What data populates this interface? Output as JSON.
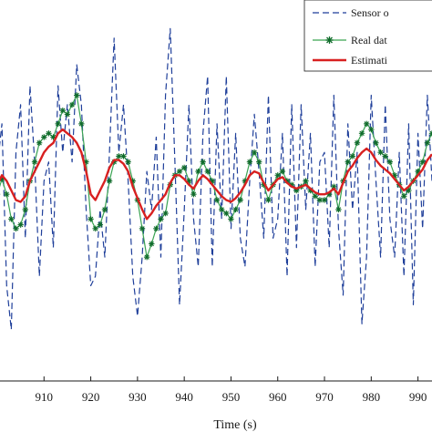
{
  "chart_data": {
    "type": "line",
    "xlabel": "Time (s)",
    "ylabel": "",
    "title": "",
    "xlim": [
      900,
      993
    ],
    "ylim": [
      -10,
      10
    ],
    "x_ticks": [
      910,
      920,
      930,
      940,
      950,
      960,
      970,
      980,
      990
    ],
    "x_tick_labels": [
      "910",
      "920",
      "930",
      "940",
      "950",
      "960",
      "970",
      "980",
      "990"
    ],
    "grid": false,
    "legend_position": "top-right",
    "x": [
      900,
      901,
      902,
      903,
      904,
      905,
      906,
      907,
      908,
      909,
      910,
      911,
      912,
      913,
      914,
      915,
      916,
      917,
      918,
      919,
      920,
      921,
      922,
      923,
      924,
      925,
      926,
      927,
      928,
      929,
      930,
      931,
      932,
      933,
      934,
      935,
      936,
      937,
      938,
      939,
      940,
      941,
      942,
      943,
      944,
      945,
      946,
      947,
      948,
      949,
      950,
      951,
      952,
      953,
      954,
      955,
      956,
      957,
      958,
      959,
      960,
      961,
      962,
      963,
      964,
      965,
      966,
      967,
      968,
      969,
      970,
      971,
      972,
      973,
      974,
      975,
      976,
      977,
      978,
      979,
      980,
      981,
      982,
      983,
      984,
      985,
      986,
      987,
      988,
      989,
      990,
      991,
      992,
      993
    ],
    "series": [
      {
        "name": "Sensor o",
        "color": "#1f3f9a",
        "style": "dashed",
        "values": [
          1.2,
          3.5,
          -5.0,
          -7.3,
          2.0,
          4.5,
          -2.5,
          5.5,
          1.5,
          -4.5,
          0.5,
          1.5,
          -3.0,
          5.5,
          2.0,
          4.5,
          1.5,
          6.6,
          4.5,
          -1.0,
          -5.0,
          -4.5,
          -1.0,
          -3.5,
          2.0,
          8.0,
          2.0,
          4.5,
          0.5,
          -4.5,
          -6.6,
          -3.5,
          1.0,
          -1.0,
          2.8,
          -3.5,
          5.0,
          8.5,
          1.5,
          -6.0,
          -1.0,
          4.5,
          -1.5,
          -4.0,
          3.0,
          6.0,
          -4.0,
          3.5,
          -1.5,
          6.0,
          -2.0,
          3.0,
          -2.5,
          -4.0,
          0.5,
          4.0,
          1.0,
          -2.5,
          5.0,
          -2.5,
          -1.5,
          3.0,
          -4.5,
          4.5,
          -3.0,
          4.5,
          -1.0,
          3.0,
          -4.0,
          1.5,
          2.0,
          -3.0,
          5.0,
          -2.0,
          -5.5,
          3.5,
          -1.0,
          2.0,
          -7.0,
          -3.5,
          5.0,
          0.5,
          -3.5,
          4.5,
          -1.5,
          -3.5,
          2.0,
          -4.5,
          3.5,
          -6.0,
          3.0,
          -2.0,
          5.0,
          0.5
        ]
      },
      {
        "name": "Real dat",
        "color": "#3aa352",
        "marker_color": "#0f6b2a",
        "style": "solid-asterisk",
        "values": [
          -0.2,
          0.6,
          -0.2,
          -1.5,
          -2.0,
          -1.8,
          -1.0,
          0.5,
          1.5,
          2.5,
          2.8,
          3.0,
          2.8,
          3.5,
          4.2,
          4.0,
          4.5,
          5.0,
          3.5,
          1.5,
          -1.5,
          -2.0,
          -1.8,
          -1.0,
          0.5,
          1.5,
          1.8,
          1.8,
          1.5,
          0.5,
          -0.5,
          -2.0,
          -3.5,
          -2.8,
          -2.0,
          -1.5,
          -1.2,
          0.3,
          0.8,
          1.0,
          1.2,
          0.5,
          -0.2,
          1.0,
          1.5,
          1.0,
          0.5,
          -0.5,
          -1.0,
          -1.2,
          -1.5,
          -1.0,
          -0.5,
          0.5,
          1.5,
          2.0,
          1.5,
          0.3,
          -0.5,
          0.3,
          0.8,
          1.0,
          0.5,
          0.3,
          0.0,
          0.2,
          0.5,
          0.0,
          -0.3,
          -0.5,
          -0.5,
          -0.2,
          0.2,
          -1.0,
          0.5,
          1.5,
          1.8,
          2.5,
          3.0,
          3.5,
          3.2,
          2.5,
          2.0,
          1.8,
          1.5,
          0.8,
          0.3,
          -0.3,
          0.0,
          0.5,
          1.0,
          1.5,
          2.5,
          3.0
        ]
      },
      {
        "name": "Estimati",
        "color": "#d82020",
        "style": "solid",
        "values": [
          0.3,
          0.8,
          0.5,
          0.0,
          -0.5,
          -0.6,
          -0.3,
          0.5,
          1.0,
          1.5,
          2.0,
          2.3,
          2.5,
          3.0,
          3.2,
          3.0,
          2.8,
          2.5,
          2.0,
          1.0,
          -0.2,
          -0.5,
          0.0,
          0.5,
          1.2,
          1.6,
          1.6,
          1.4,
          1.0,
          0.2,
          -0.4,
          -1.0,
          -1.5,
          -1.2,
          -0.8,
          -0.5,
          -0.2,
          0.4,
          0.8,
          0.8,
          0.6,
          0.3,
          0.1,
          0.5,
          0.8,
          0.6,
          0.3,
          0.0,
          -0.3,
          -0.5,
          -0.6,
          -0.4,
          -0.1,
          0.3,
          0.8,
          1.0,
          0.9,
          0.4,
          0.0,
          0.3,
          0.6,
          0.7,
          0.4,
          0.2,
          0.1,
          0.2,
          0.3,
          0.1,
          -0.1,
          -0.2,
          -0.2,
          -0.1,
          0.1,
          -0.2,
          0.4,
          1.0,
          1.3,
          1.7,
          2.0,
          2.2,
          2.0,
          1.6,
          1.3,
          1.1,
          0.9,
          0.6,
          0.3,
          0.0,
          0.2,
          0.5,
          0.8,
          1.1,
          1.6,
          1.9
        ]
      }
    ]
  }
}
